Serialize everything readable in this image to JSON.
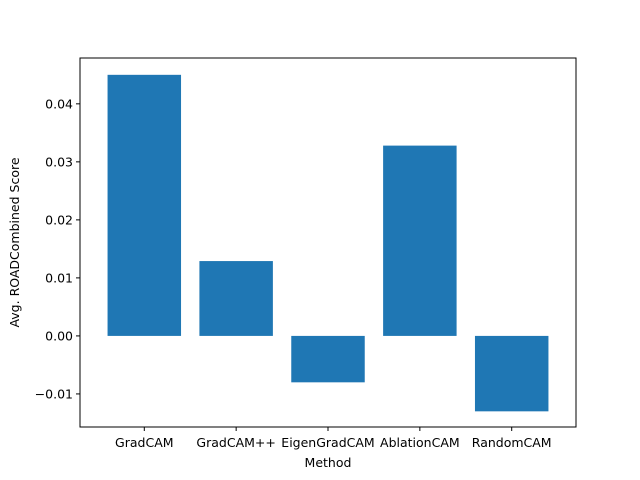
{
  "chart_data": {
    "type": "bar",
    "categories": [
      "GradCAM",
      "GradCAM++",
      "EigenGradCAM",
      "AblationCAM",
      "RandomCAM"
    ],
    "values": [
      0.045,
      0.0129,
      -0.008,
      0.0328,
      -0.013
    ],
    "xlabel": "Method",
    "ylabel": "Avg. ROADCombined Score",
    "ylim": [
      -0.0157,
      0.0479
    ],
    "yticks": [
      -0.01,
      0.0,
      0.01,
      0.02,
      0.03,
      0.04
    ],
    "ytick_labels": [
      "−0.01",
      "0.00",
      "0.01",
      "0.02",
      "0.03",
      "0.04"
    ],
    "bar_color": "#1f77b4",
    "grid": false
  }
}
